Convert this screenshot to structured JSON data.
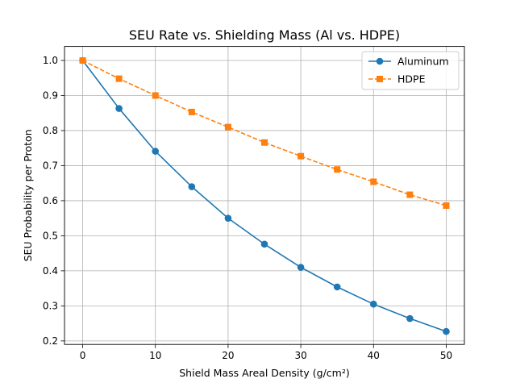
{
  "chart_data": {
    "type": "line",
    "title": "SEU Rate vs. Shielding Mass (Al vs. HDPE)",
    "xlabel": "Shield Mass Areal Density (g/cm²)",
    "ylabel": "SEU Probability per Proton",
    "xlim": [
      -2.5,
      52.5
    ],
    "ylim": [
      0.19,
      1.04
    ],
    "xticks": [
      0,
      10,
      20,
      30,
      40,
      50
    ],
    "yticks": [
      0.2,
      0.3,
      0.4,
      0.5,
      0.6,
      0.7,
      0.8,
      0.9,
      1.0
    ],
    "xtick_labels": [
      "0",
      "10",
      "20",
      "30",
      "40",
      "50"
    ],
    "ytick_labels": [
      "0.2",
      "0.3",
      "0.4",
      "0.5",
      "0.6",
      "0.7",
      "0.8",
      "0.9",
      "1.0"
    ],
    "grid": true,
    "legend_position": "top-right",
    "x": [
      0,
      5,
      10,
      15,
      20,
      25,
      30,
      35,
      40,
      45,
      50
    ],
    "series": [
      {
        "name": "Aluminum",
        "values": [
          1.0,
          0.863,
          0.741,
          0.64,
          0.55,
          0.476,
          0.41,
          0.354,
          0.305,
          0.264,
          0.227
        ],
        "color": "#1f77b4",
        "line_style": "solid",
        "marker": "circle"
      },
      {
        "name": "HDPE",
        "values": [
          1.0,
          0.948,
          0.9,
          0.853,
          0.81,
          0.766,
          0.727,
          0.689,
          0.654,
          0.617,
          0.586
        ],
        "color": "#ff7f0e",
        "line_style": "dashed",
        "marker": "square"
      }
    ]
  }
}
